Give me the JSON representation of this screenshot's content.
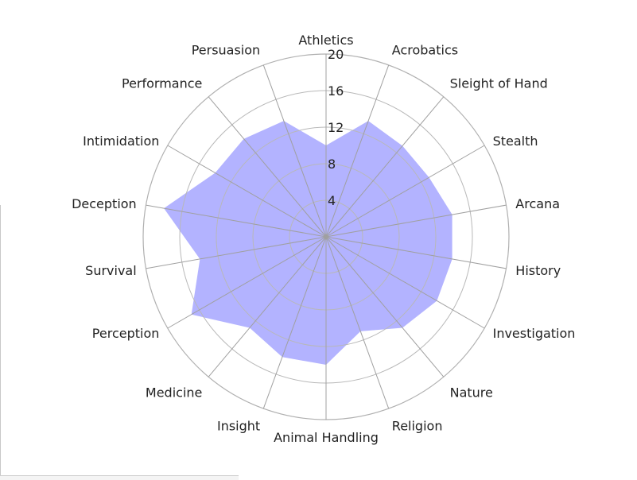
{
  "chart_data": {
    "type": "radar",
    "title": "",
    "categories": [
      "Athletics",
      "Acrobatics",
      "Sleight of Hand",
      "Stealth",
      "Arcana",
      "History",
      "Investigation",
      "Nature",
      "Religion",
      "Animal Handling",
      "Insight",
      "Medicine",
      "Perception",
      "Survival",
      "Deception",
      "Intimidation",
      "Performance",
      "Persuasion"
    ],
    "series": [
      {
        "values": [
          10,
          13.5,
          13,
          13,
          14,
          14,
          14,
          13,
          11,
          14,
          14,
          13,
          17,
          14,
          18,
          14,
          14,
          13.5
        ],
        "color": "#b3b3ff"
      }
    ],
    "rlim": [
      0,
      20
    ],
    "rticks": [
      4,
      8,
      12,
      16,
      20
    ],
    "rtick_labels": [
      "4",
      "8",
      "12",
      "16",
      "20"
    ],
    "grid": true,
    "legend": "none"
  }
}
